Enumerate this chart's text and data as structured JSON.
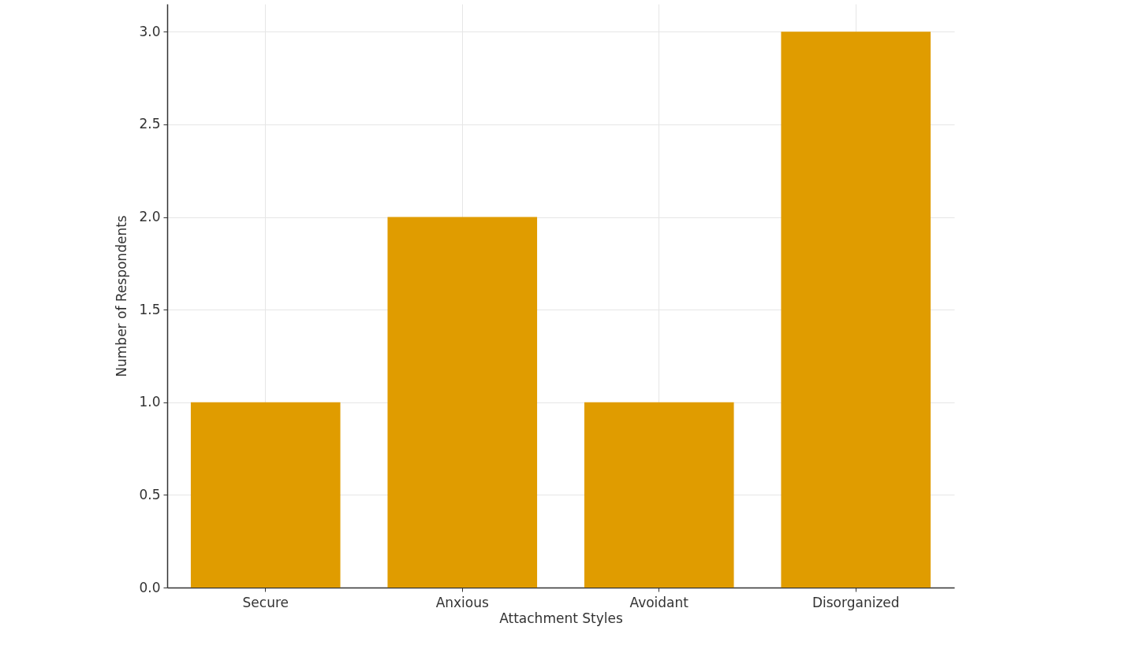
{
  "chart_data": {
    "type": "bar",
    "xlabel": "Attachment Styles",
    "ylabel": "Number of Respondents",
    "categories": [
      "Secure",
      "Anxious",
      "Avoidant",
      "Disorganized"
    ],
    "values": [
      1,
      2,
      1,
      3
    ],
    "color": "#e09c00",
    "ylim": [
      0,
      3.15
    ],
    "yticks": [
      {
        "value": 0,
        "label": "0.0"
      },
      0.5,
      {
        "value": 1,
        "label": "1.0"
      },
      1.5,
      {
        "value": 2,
        "label": "2.0"
      },
      2.5,
      {
        "value": 3,
        "label": "3.0"
      }
    ],
    "grid": true
  }
}
